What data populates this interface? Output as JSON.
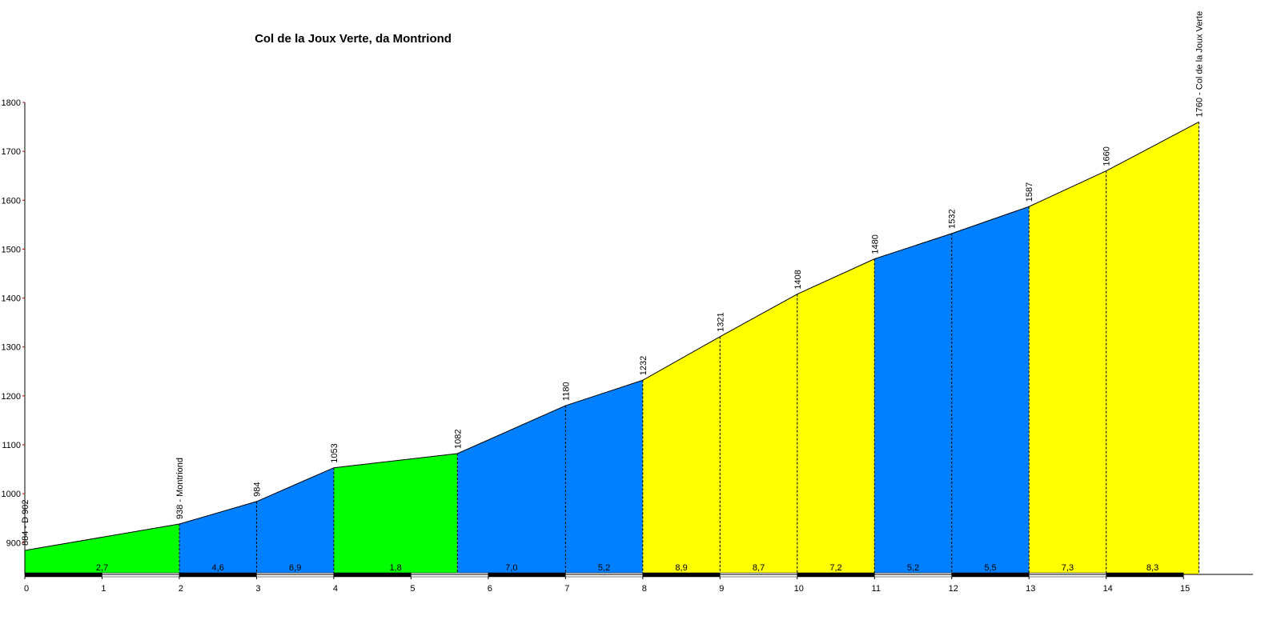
{
  "chart_data": {
    "type": "elevation-profile",
    "title": "Col de la Joux Verte, da Montriond",
    "x": [
      0,
      2,
      3,
      4,
      5.6,
      7,
      8,
      9,
      10,
      11,
      12,
      13,
      14,
      15.2
    ],
    "values": [
      884,
      938,
      984,
      1053,
      1082,
      1180,
      1232,
      1321,
      1408,
      1480,
      1532,
      1587,
      1660,
      1760
    ],
    "value_labels": [
      "884 - D 902",
      "938 - Montriond",
      "984",
      "1053",
      "1082",
      "1180",
      "1232",
      "1321",
      "1408",
      "1480",
      "1532",
      "1587",
      "1660",
      "1760 - Col de la Joux Verte"
    ],
    "grades": {
      "values": [
        2.7,
        4.6,
        6.9,
        1.8,
        7.0,
        5.2,
        8.9,
        8.7,
        7.2,
        5.2,
        5.5,
        7.3,
        8.3
      ],
      "value_labels": [
        "2,7",
        "4,6",
        "6,9",
        "1,8",
        "7,0",
        "5,2",
        "8,9",
        "8,7",
        "7,2",
        "5,2",
        "5,5",
        "7,3",
        "8,3"
      ],
      "colors": [
        "#00ff00",
        "#0080ff",
        "#0080ff",
        "#00ff00",
        "#0080ff",
        "#0080ff",
        "#ffff00",
        "#ffff00",
        "#ffff00",
        "#0080ff",
        "#0080ff",
        "#ffff00",
        "#ffff00"
      ]
    },
    "xlim": [
      0,
      15.9
    ],
    "xticks": [
      0,
      1,
      2,
      3,
      4,
      5,
      6,
      7,
      8,
      9,
      10,
      11,
      12,
      13,
      14,
      15
    ],
    "ylim": [
      835,
      1800
    ],
    "yticks": [
      900,
      1000,
      1100,
      1200,
      1300,
      1400,
      1500,
      1600,
      1700,
      1800
    ]
  }
}
